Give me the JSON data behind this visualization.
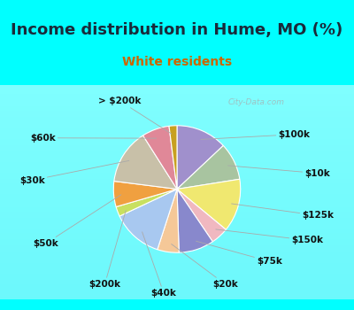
{
  "title": "Income distribution in Hume, MO (%)",
  "subtitle": "White residents",
  "background_color": "#00ffff",
  "slices": [
    {
      "label": "$100k",
      "value": 13.0,
      "color": "#a090cc"
    },
    {
      "label": "$10k",
      "value": 9.5,
      "color": "#a8c4a0"
    },
    {
      "label": "$125k",
      "value": 13.5,
      "color": "#f0e870"
    },
    {
      "label": "$150k",
      "value": 4.5,
      "color": "#f0b8c0"
    },
    {
      "label": "$75k",
      "value": 9.0,
      "color": "#8888cc"
    },
    {
      "label": "$20k",
      "value": 5.5,
      "color": "#f5c898"
    },
    {
      "label": "$40k",
      "value": 13.0,
      "color": "#a8c8f0"
    },
    {
      "label": "$200k",
      "value": 2.5,
      "color": "#c8e060"
    },
    {
      "label": "$50k",
      "value": 6.5,
      "color": "#f0a040"
    },
    {
      "label": "$30k",
      "value": 14.0,
      "color": "#c8c0a8"
    },
    {
      "label": "$60k",
      "value": 7.0,
      "color": "#e08898"
    },
    {
      "label": "> $200k",
      "value": 2.0,
      "color": "#c8a020"
    }
  ],
  "title_fontsize": 13,
  "subtitle_fontsize": 10,
  "label_fontsize": 7.5,
  "startangle": 90
}
